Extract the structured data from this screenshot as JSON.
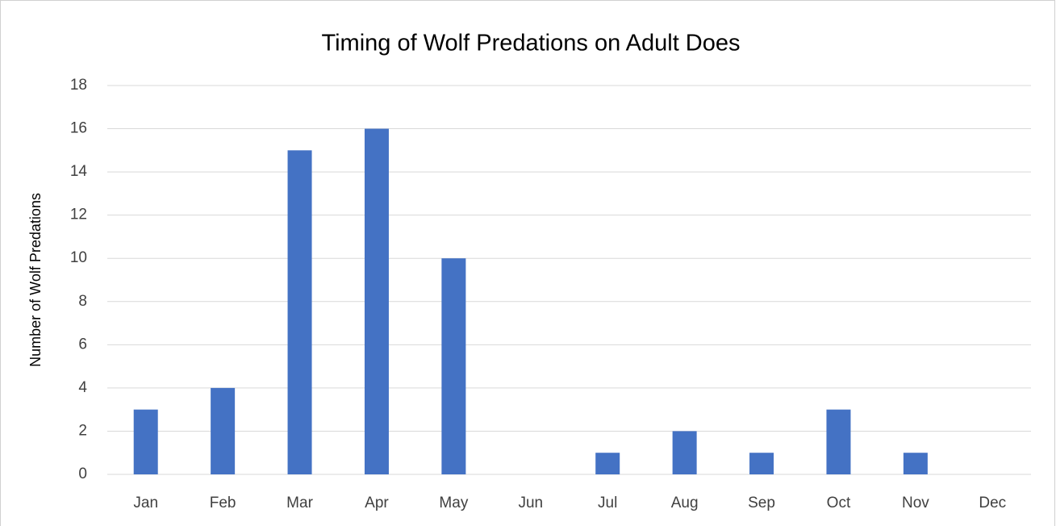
{
  "chart_data": {
    "type": "bar",
    "title": "Timing of Wolf Predations on Adult Does",
    "y_label": "Number of Wolf Predations",
    "categories": [
      "Jan",
      "Feb",
      "Mar",
      "Apr",
      "May",
      "Jun",
      "Jul",
      "Aug",
      "Sep",
      "Oct",
      "Nov",
      "Dec"
    ],
    "values": [
      3,
      4,
      15,
      16,
      10,
      0,
      1,
      2,
      1,
      3,
      1,
      0
    ],
    "color": "#4472c4",
    "ylim": [
      0,
      18
    ],
    "yticks": [
      0,
      2,
      4,
      6,
      8,
      10,
      12,
      14,
      16,
      18
    ],
    "grid": true
  }
}
